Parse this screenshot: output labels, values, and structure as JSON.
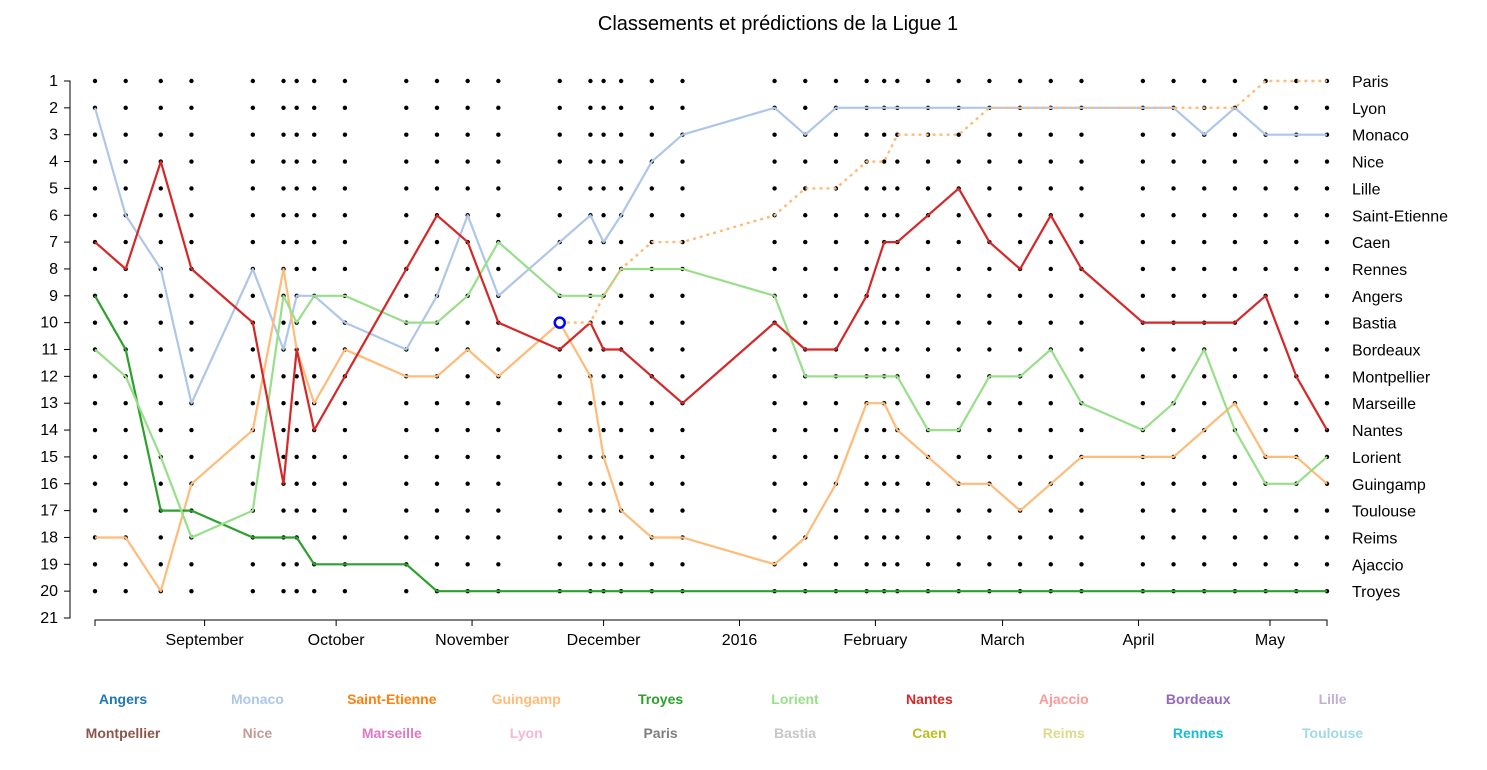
{
  "chart_data": {
    "type": "line",
    "title": "Classements et prédictions de la Ligue 1",
    "xlabel": "",
    "ylabel": "",
    "ylim": [
      1,
      21
    ],
    "y_ticks": [
      1,
      2,
      3,
      4,
      5,
      6,
      7,
      8,
      9,
      10,
      11,
      12,
      13,
      14,
      15,
      16,
      17,
      18,
      19,
      20,
      21
    ],
    "x_tick_labels": [
      "September",
      "October",
      "November",
      "December",
      "2016",
      "February",
      "March",
      "April",
      "May"
    ],
    "rounds": [
      1,
      2,
      3,
      4,
      5,
      6,
      7,
      8,
      9,
      10,
      11,
      12,
      13,
      14,
      15,
      16,
      17,
      18,
      19,
      20,
      21,
      22,
      23,
      24,
      25,
      26,
      27,
      28,
      29,
      30,
      31,
      32,
      33,
      34,
      35,
      36,
      37,
      38
    ],
    "round_dates": [
      "2015-08-07",
      "2015-08-14",
      "2015-08-22",
      "2015-08-29",
      "2015-09-12",
      "2015-09-19",
      "2015-09-22",
      "2015-09-26",
      "2015-10-03",
      "2015-10-17",
      "2015-10-24",
      "2015-10-31",
      "2015-11-07",
      "2015-11-21",
      "2015-11-28",
      "2015-12-01",
      "2015-12-05",
      "2015-12-12",
      "2015-12-19",
      "2016-01-09",
      "2016-01-16",
      "2016-01-23",
      "2016-01-30",
      "2016-02-03",
      "2016-02-06",
      "2016-02-13",
      "2016-02-20",
      "2016-02-27",
      "2016-03-05",
      "2016-03-12",
      "2016-03-19",
      "2016-04-02",
      "2016-04-09",
      "2016-04-16",
      "2016-04-23",
      "2016-04-30",
      "2016-05-07",
      "2016-05-14"
    ],
    "x_tick_dates": [
      "2015-09-01",
      "2015-10-01",
      "2015-11-01",
      "2015-12-01",
      "2016-01-01",
      "2016-02-01",
      "2016-03-01",
      "2016-04-01",
      "2016-05-01"
    ],
    "team_ranking_labels": [
      "Paris",
      "Lyon",
      "Monaco",
      "Nice",
      "Lille",
      "Saint-Etienne",
      "Caen",
      "Rennes",
      "Angers",
      "Bastia",
      "Bordeaux",
      "Montpellier",
      "Marseille",
      "Nantes",
      "Lorient",
      "Guingamp",
      "Toulouse",
      "Reims",
      "Ajaccio",
      "Troyes"
    ],
    "series": [
      {
        "name": "Monaco",
        "color": "#aec7e8",
        "style": "solid",
        "x": [
          1,
          2,
          3,
          4,
          5,
          6,
          7,
          8,
          9,
          10,
          11,
          12,
          13,
          14,
          15,
          16,
          17,
          18,
          19,
          20,
          21,
          22,
          23,
          24,
          25,
          26,
          27,
          28,
          29,
          30,
          31,
          32,
          33,
          34,
          35,
          36,
          37,
          38
        ],
        "y": [
          2,
          6,
          8,
          13,
          8,
          11,
          9,
          9,
          10,
          11,
          9,
          6,
          9,
          7,
          6,
          7,
          6,
          4,
          3,
          2,
          3,
          2,
          2,
          2,
          2,
          2,
          2,
          2,
          2,
          2,
          2,
          2,
          2,
          3,
          2,
          3,
          3,
          3
        ]
      },
      {
        "name": "Guingamp",
        "color": "#ffbb78",
        "style": "solid",
        "x": [
          1,
          2,
          3,
          4,
          5,
          6,
          7,
          8,
          9,
          10,
          11,
          12,
          13,
          14,
          15,
          16,
          17,
          18,
          19,
          20,
          21,
          22,
          23,
          24,
          25,
          26,
          27,
          28,
          29,
          30,
          31,
          32,
          33,
          34,
          35,
          36,
          37,
          38
        ],
        "y": [
          18,
          18,
          20,
          16,
          14,
          8,
          11,
          13,
          11,
          12,
          12,
          11,
          12,
          10,
          12,
          15,
          17,
          18,
          18,
          19,
          18,
          16,
          13,
          13,
          14,
          15,
          16,
          16,
          17,
          16,
          15,
          15,
          15,
          14,
          13,
          15,
          15,
          16
        ]
      },
      {
        "name": "Troyes",
        "color": "#2ca02c",
        "style": "solid",
        "x": [
          1,
          2,
          3,
          4,
          5,
          6,
          7,
          8,
          9,
          10,
          11,
          12,
          13,
          14,
          15,
          16,
          17,
          18,
          19,
          20,
          21,
          22,
          23,
          24,
          25,
          26,
          27,
          28,
          29,
          30,
          31,
          32,
          33,
          34,
          35,
          36,
          37,
          38
        ],
        "y": [
          9,
          11,
          17,
          17,
          18,
          18,
          18,
          19,
          19,
          19,
          20,
          20,
          20,
          20,
          20,
          20,
          20,
          20,
          20,
          20,
          20,
          20,
          20,
          20,
          20,
          20,
          20,
          20,
          20,
          20,
          20,
          20,
          20,
          20,
          20,
          20,
          20,
          20
        ]
      },
      {
        "name": "Lorient",
        "color": "#98df8a",
        "style": "solid",
        "x": [
          1,
          2,
          3,
          4,
          5,
          6,
          7,
          8,
          9,
          10,
          11,
          12,
          13,
          14,
          15,
          16,
          17,
          18,
          19,
          20,
          21,
          22,
          23,
          24,
          25,
          26,
          27,
          28,
          29,
          30,
          31,
          32,
          33,
          34,
          35,
          36,
          37,
          38
        ],
        "y": [
          11,
          12,
          15,
          18,
          17,
          9,
          10,
          9,
          9,
          10,
          10,
          9,
          7,
          9,
          9,
          9,
          8,
          8,
          8,
          9,
          12,
          12,
          12,
          12,
          12,
          14,
          14,
          12,
          12,
          11,
          13,
          14,
          13,
          11,
          14,
          16,
          16,
          15
        ]
      },
      {
        "name": "Nantes",
        "color": "#d62728",
        "style": "solid",
        "x": [
          1,
          2,
          3,
          4,
          5,
          6,
          7,
          8,
          9,
          10,
          11,
          12,
          13,
          14,
          15,
          16,
          17,
          18,
          19,
          20,
          21,
          22,
          23,
          24,
          25,
          26,
          27,
          28,
          29,
          30,
          31,
          32,
          33,
          34,
          35,
          36,
          37,
          38
        ],
        "y": [
          7,
          8,
          4,
          8,
          10,
          16,
          11,
          14,
          12,
          8,
          6,
          7,
          10,
          11,
          10,
          11,
          11,
          12,
          13,
          10,
          11,
          11,
          9,
          7,
          7,
          6,
          5,
          7,
          8,
          6,
          8,
          10,
          10,
          10,
          10,
          9,
          12,
          14
        ]
      },
      {
        "name": "Paris",
        "color": "#ffbb78",
        "style": "dotted",
        "x": [
          14,
          15,
          16,
          17,
          18,
          19,
          20,
          21,
          22,
          23,
          24,
          25,
          26,
          27,
          28,
          29,
          30,
          31,
          32,
          33,
          34,
          35,
          36,
          37,
          38
        ],
        "y": [
          10,
          10,
          9,
          8,
          7,
          7,
          6,
          5,
          5,
          4,
          4,
          3,
          3,
          3,
          2,
          2,
          2,
          2,
          2,
          2,
          2,
          2,
          1,
          1,
          1
        ]
      }
    ],
    "highlight_point": {
      "round": 14,
      "rank": 10,
      "color": "#0000ff"
    },
    "legend": [
      {
        "name": "Angers",
        "color": "#1f77b4"
      },
      {
        "name": "Monaco",
        "color": "#aec7e8"
      },
      {
        "name": "Saint-Etienne",
        "color": "#ff7f0e"
      },
      {
        "name": "Guingamp",
        "color": "#ffbb78"
      },
      {
        "name": "Troyes",
        "color": "#2ca02c"
      },
      {
        "name": "Lorient",
        "color": "#98df8a"
      },
      {
        "name": "Nantes",
        "color": "#d62728"
      },
      {
        "name": "Ajaccio",
        "color": "#ff9896"
      },
      {
        "name": "Bordeaux",
        "color": "#9467bd"
      },
      {
        "name": "Lille",
        "color": "#c5b0d5"
      },
      {
        "name": "Montpellier",
        "color": "#8c564b"
      },
      {
        "name": "Nice",
        "color": "#c49c94"
      },
      {
        "name": "Marseille",
        "color": "#e377c2"
      },
      {
        "name": "Lyon",
        "color": "#f7b6d2"
      },
      {
        "name": "Paris",
        "color": "#7f7f7f"
      },
      {
        "name": "Bastia",
        "color": "#c7c7c7"
      },
      {
        "name": "Caen",
        "color": "#bcbd22"
      },
      {
        "name": "Reims",
        "color": "#dbdb8d"
      },
      {
        "name": "Rennes",
        "color": "#17becf"
      },
      {
        "name": "Toulouse",
        "color": "#9edae5"
      }
    ],
    "grid": false,
    "legend_placement": "bottom"
  }
}
